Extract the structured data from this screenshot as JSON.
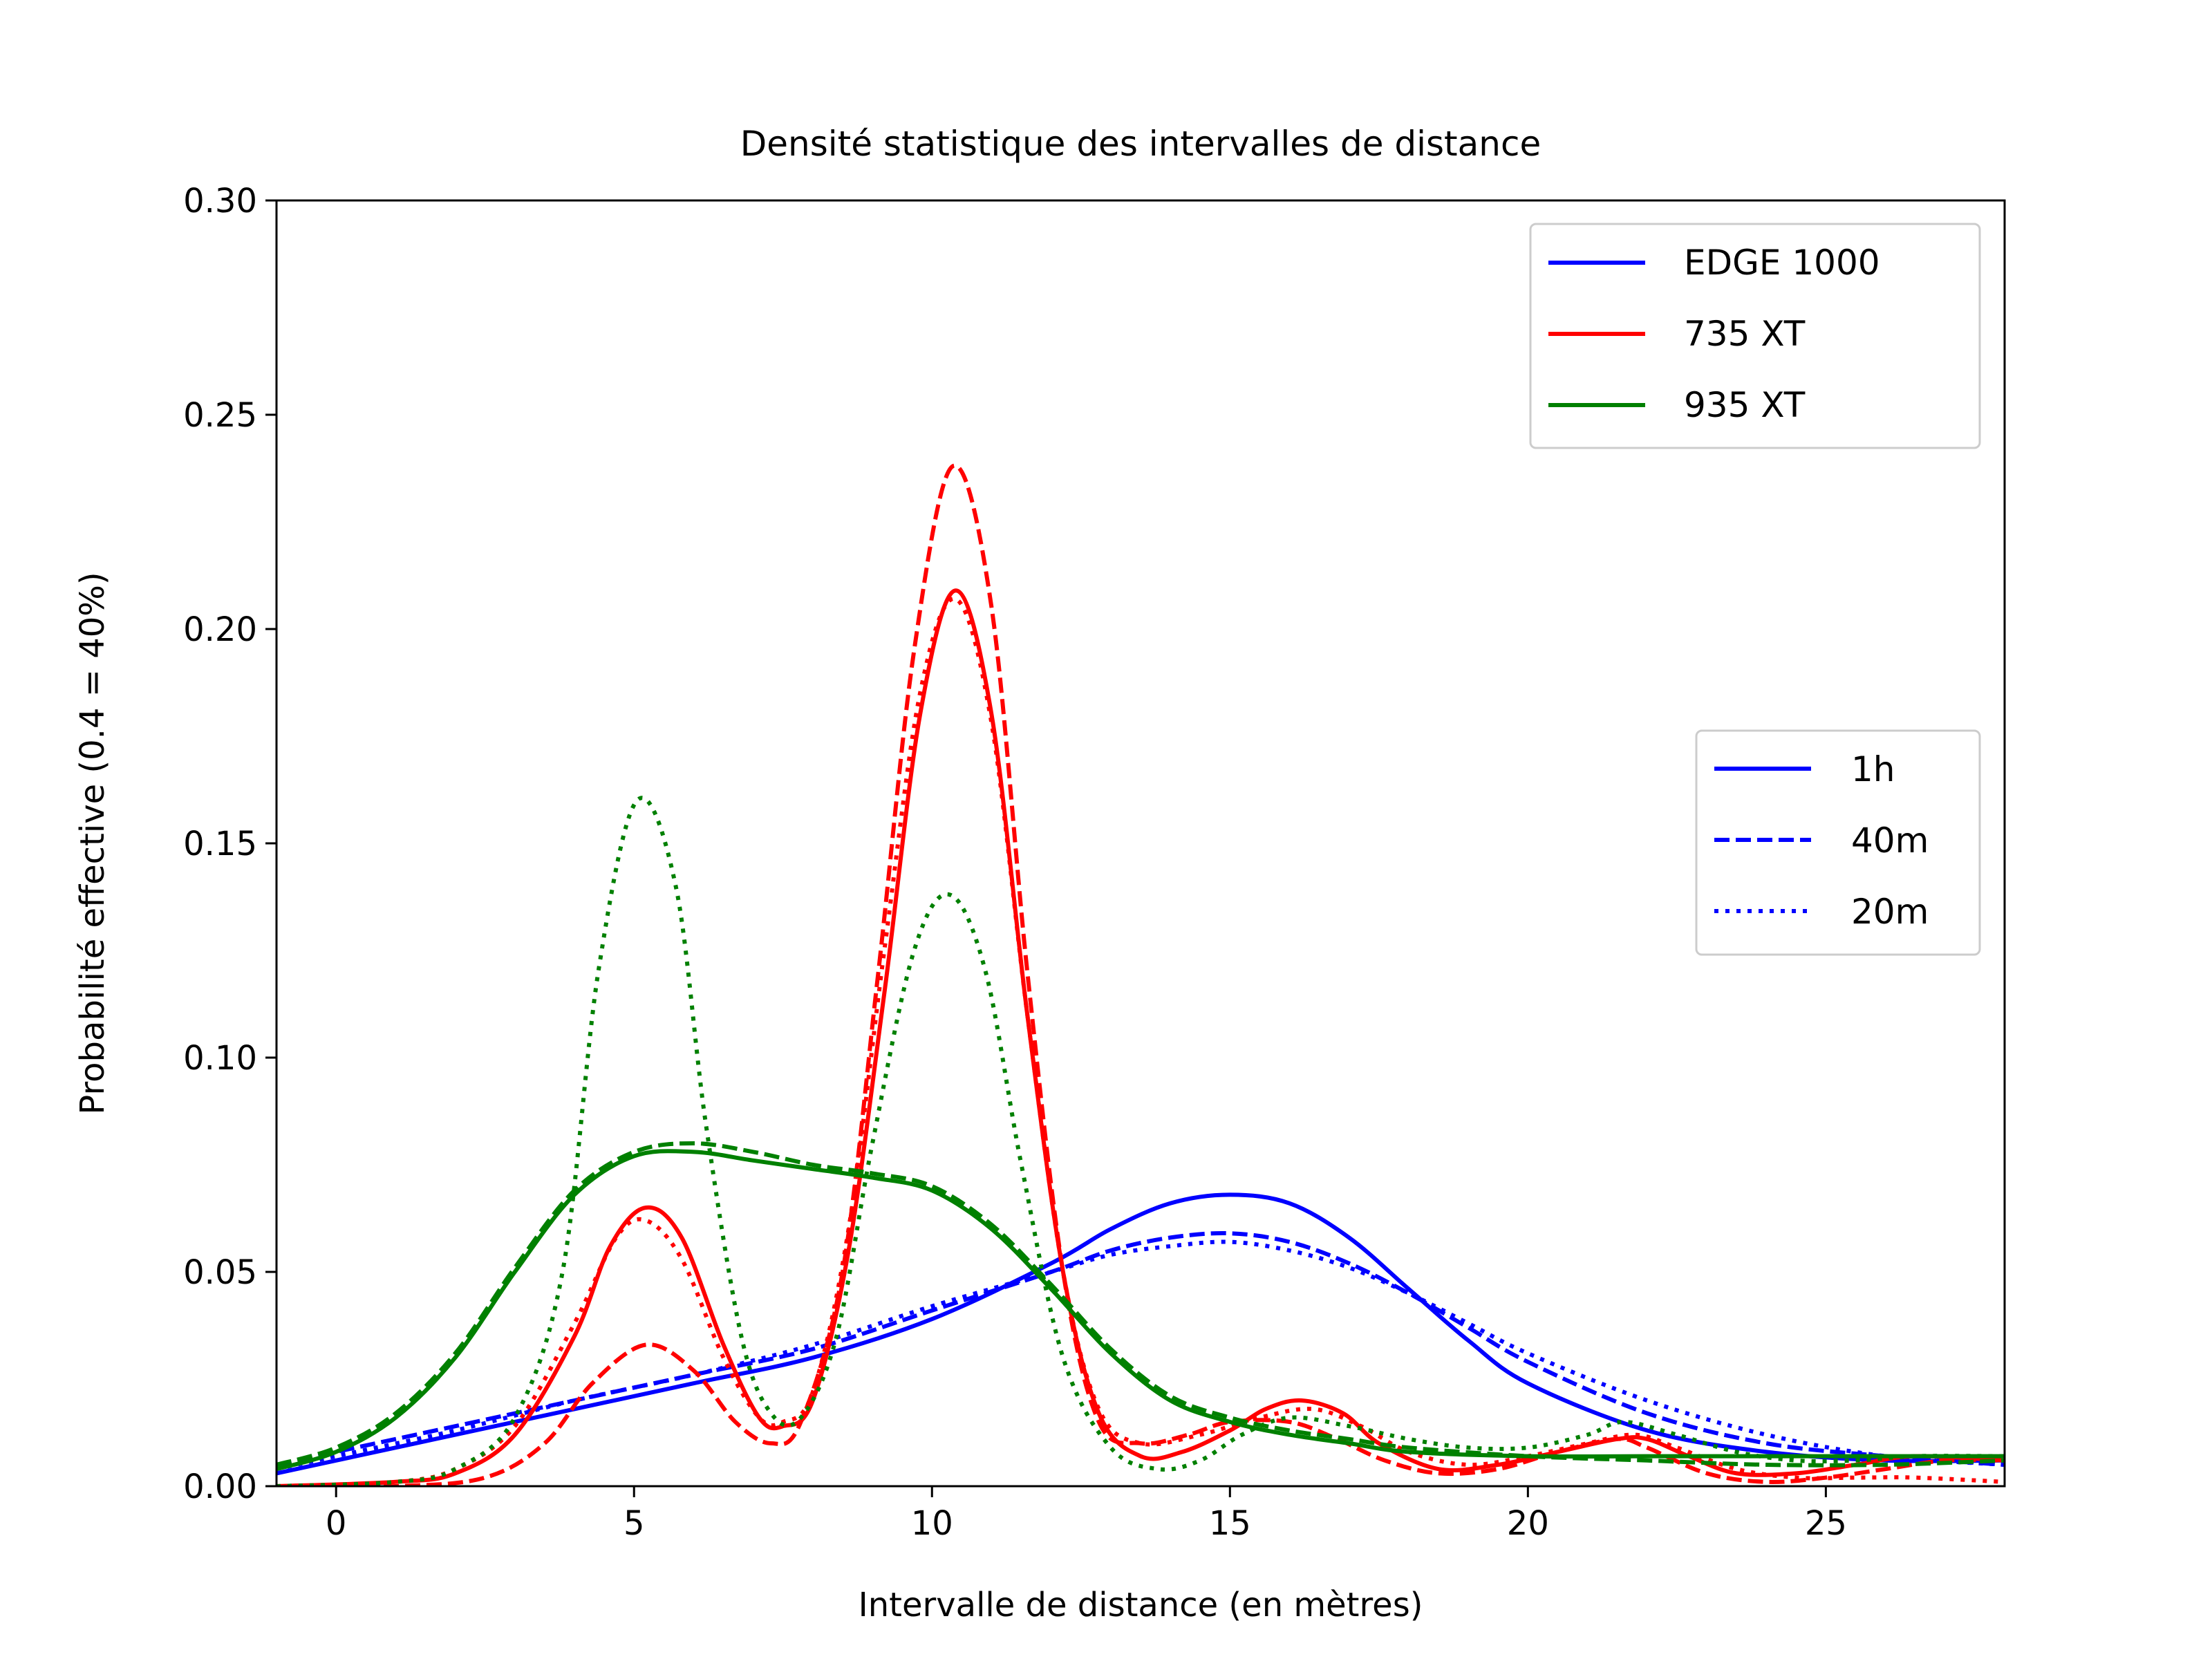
{
  "chart_data": {
    "type": "line",
    "title": "Densité statistique des intervalles de distance",
    "xlabel": "Intervalle de distance (en mètres)",
    "ylabel": "Probabilité effective (0.4 = 40%)",
    "xlim": [
      -1,
      28
    ],
    "ylim": [
      0,
      0.3
    ],
    "xticks": [
      0,
      5,
      10,
      15,
      20,
      25
    ],
    "yticks": [
      0,
      0.05,
      0.1,
      0.15,
      0.2,
      0.25,
      0.3
    ],
    "xtick_labels": [
      "0",
      "5",
      "10",
      "15",
      "20",
      "25"
    ],
    "ytick_labels": [
      "0.00",
      "0.05",
      "0.10",
      "0.15",
      "0.20",
      "0.25",
      "0.30"
    ],
    "grid": false,
    "legends": [
      {
        "placement": "top-right",
        "entries": [
          {
            "label": "EDGE 1000",
            "color": "#0000ff",
            "style": "solid"
          },
          {
            "label": "735 XT",
            "color": "#ff0000",
            "style": "solid"
          },
          {
            "label": "935 XT",
            "color": "#008000",
            "style": "solid"
          }
        ]
      },
      {
        "placement": "center-right",
        "entries": [
          {
            "label": "1h",
            "color": "#0000ff",
            "style": "solid"
          },
          {
            "label": "40m",
            "color": "#0000ff",
            "style": "dashed"
          },
          {
            "label": "20m",
            "color": "#0000ff",
            "style": "dotted"
          }
        ]
      }
    ],
    "series": [
      {
        "device": "EDGE 1000",
        "duration": "1h",
        "color": "#0000ff",
        "style": "solid",
        "points": [
          [
            -1,
            0.003
          ],
          [
            0,
            0.006
          ],
          [
            2,
            0.012
          ],
          [
            4,
            0.018
          ],
          [
            6,
            0.024
          ],
          [
            8,
            0.03
          ],
          [
            10,
            0.039
          ],
          [
            12,
            0.052
          ],
          [
            13,
            0.06
          ],
          [
            14,
            0.066
          ],
          [
            15,
            0.068
          ],
          [
            16,
            0.066
          ],
          [
            17,
            0.058
          ],
          [
            18,
            0.046
          ],
          [
            19,
            0.034
          ],
          [
            20,
            0.024
          ],
          [
            22,
            0.013
          ],
          [
            24,
            0.008
          ],
          [
            26,
            0.006
          ],
          [
            28,
            0.006
          ]
        ]
      },
      {
        "device": "EDGE 1000",
        "duration": "40m",
        "color": "#0000ff",
        "style": "dashed",
        "points": [
          [
            -1,
            0.005
          ],
          [
            0,
            0.008
          ],
          [
            2,
            0.014
          ],
          [
            4,
            0.02
          ],
          [
            6,
            0.026
          ],
          [
            8,
            0.032
          ],
          [
            10,
            0.041
          ],
          [
            12,
            0.05
          ],
          [
            13,
            0.055
          ],
          [
            14,
            0.058
          ],
          [
            15,
            0.059
          ],
          [
            16,
            0.057
          ],
          [
            17,
            0.052
          ],
          [
            18,
            0.045
          ],
          [
            19,
            0.037
          ],
          [
            20,
            0.029
          ],
          [
            22,
            0.017
          ],
          [
            24,
            0.01
          ],
          [
            26,
            0.007
          ],
          [
            28,
            0.005
          ]
        ]
      },
      {
        "device": "EDGE 1000",
        "duration": "20m",
        "color": "#0000ff",
        "style": "dotted",
        "points": [
          [
            -1,
            0.004
          ],
          [
            0,
            0.007
          ],
          [
            2,
            0.013
          ],
          [
            4,
            0.02
          ],
          [
            6,
            0.026
          ],
          [
            8,
            0.033
          ],
          [
            10,
            0.042
          ],
          [
            12,
            0.05
          ],
          [
            13,
            0.054
          ],
          [
            14,
            0.056
          ],
          [
            15,
            0.057
          ],
          [
            16,
            0.055
          ],
          [
            17,
            0.051
          ],
          [
            18,
            0.045
          ],
          [
            19,
            0.038
          ],
          [
            20,
            0.031
          ],
          [
            22,
            0.02
          ],
          [
            24,
            0.012
          ],
          [
            26,
            0.007
          ],
          [
            28,
            0.005
          ]
        ]
      },
      {
        "device": "735 XT",
        "duration": "1h",
        "color": "#ff0000",
        "style": "solid",
        "points": [
          [
            -1,
            0.0
          ],
          [
            1,
            0.001
          ],
          [
            2,
            0.003
          ],
          [
            3,
            0.012
          ],
          [
            4,
            0.035
          ],
          [
            4.6,
            0.056
          ],
          [
            5.2,
            0.065
          ],
          [
            5.8,
            0.058
          ],
          [
            6.5,
            0.033
          ],
          [
            7.1,
            0.016
          ],
          [
            7.5,
            0.014
          ],
          [
            8,
            0.02
          ],
          [
            8.6,
            0.055
          ],
          [
            9.2,
            0.115
          ],
          [
            9.8,
            0.18
          ],
          [
            10.4,
            0.209
          ],
          [
            11,
            0.18
          ],
          [
            11.6,
            0.11
          ],
          [
            12.2,
            0.05
          ],
          [
            12.8,
            0.017
          ],
          [
            13.5,
            0.007
          ],
          [
            14.2,
            0.008
          ],
          [
            15,
            0.013
          ],
          [
            15.6,
            0.018
          ],
          [
            16.2,
            0.02
          ],
          [
            16.9,
            0.017
          ],
          [
            17.5,
            0.01
          ],
          [
            18.5,
            0.004
          ],
          [
            19.5,
            0.005
          ],
          [
            20.5,
            0.008
          ],
          [
            21.5,
            0.011
          ],
          [
            22,
            0.011
          ],
          [
            22.7,
            0.007
          ],
          [
            23.5,
            0.003
          ],
          [
            24.5,
            0.003
          ],
          [
            25.5,
            0.005
          ],
          [
            26.5,
            0.007
          ],
          [
            28,
            0.006
          ]
        ]
      },
      {
        "device": "735 XT",
        "duration": "40m",
        "color": "#ff0000",
        "style": "dashed",
        "points": [
          [
            -1,
            0.0
          ],
          [
            1,
            0.0
          ],
          [
            2.5,
            0.002
          ],
          [
            3.5,
            0.01
          ],
          [
            4.3,
            0.024
          ],
          [
            5.2,
            0.033
          ],
          [
            6,
            0.027
          ],
          [
            6.7,
            0.015
          ],
          [
            7.3,
            0.01
          ],
          [
            7.8,
            0.015
          ],
          [
            8.5,
            0.05
          ],
          [
            9.1,
            0.12
          ],
          [
            9.7,
            0.195
          ],
          [
            10.35,
            0.238
          ],
          [
            11,
            0.205
          ],
          [
            11.6,
            0.12
          ],
          [
            12.2,
            0.05
          ],
          [
            12.8,
            0.015
          ],
          [
            13.5,
            0.01
          ],
          [
            14.3,
            0.012
          ],
          [
            15,
            0.015
          ],
          [
            16,
            0.015
          ],
          [
            16.8,
            0.011
          ],
          [
            17.6,
            0.006
          ],
          [
            18.5,
            0.003
          ],
          [
            19.5,
            0.004
          ],
          [
            20.5,
            0.008
          ],
          [
            21.5,
            0.011
          ],
          [
            22,
            0.009
          ],
          [
            23,
            0.003
          ],
          [
            24,
            0.001
          ],
          [
            25,
            0.002
          ],
          [
            26,
            0.004
          ],
          [
            27,
            0.006
          ],
          [
            28,
            0.006
          ]
        ]
      },
      {
        "device": "735 XT",
        "duration": "20m",
        "color": "#ff0000",
        "style": "dotted",
        "points": [
          [
            -1,
            0.0
          ],
          [
            1,
            0.001
          ],
          [
            2,
            0.004
          ],
          [
            3,
            0.014
          ],
          [
            4,
            0.038
          ],
          [
            4.7,
            0.058
          ],
          [
            5.2,
            0.062
          ],
          [
            5.8,
            0.053
          ],
          [
            6.5,
            0.03
          ],
          [
            7.1,
            0.016
          ],
          [
            7.5,
            0.015
          ],
          [
            8,
            0.022
          ],
          [
            8.6,
            0.06
          ],
          [
            9.2,
            0.125
          ],
          [
            9.8,
            0.185
          ],
          [
            10.4,
            0.207
          ],
          [
            11,
            0.178
          ],
          [
            11.6,
            0.11
          ],
          [
            12.2,
            0.05
          ],
          [
            12.8,
            0.018
          ],
          [
            13.5,
            0.01
          ],
          [
            14.5,
            0.012
          ],
          [
            15.5,
            0.016
          ],
          [
            16.4,
            0.018
          ],
          [
            17.2,
            0.014
          ],
          [
            18,
            0.008
          ],
          [
            19,
            0.005
          ],
          [
            20,
            0.007
          ],
          [
            21,
            0.01
          ],
          [
            21.8,
            0.012
          ],
          [
            22.5,
            0.009
          ],
          [
            23.5,
            0.004
          ],
          [
            24.5,
            0.002
          ],
          [
            25.5,
            0.002
          ],
          [
            26.5,
            0.002
          ],
          [
            28,
            0.001
          ]
        ]
      },
      {
        "device": "935 XT",
        "duration": "1h",
        "color": "#008000",
        "style": "solid",
        "points": [
          [
            -1,
            0.004
          ],
          [
            0,
            0.008
          ],
          [
            1,
            0.016
          ],
          [
            2,
            0.03
          ],
          [
            3,
            0.05
          ],
          [
            4,
            0.068
          ],
          [
            5,
            0.077
          ],
          [
            6,
            0.078
          ],
          [
            7,
            0.076
          ],
          [
            8,
            0.074
          ],
          [
            9,
            0.072
          ],
          [
            10,
            0.069
          ],
          [
            11,
            0.06
          ],
          [
            12,
            0.046
          ],
          [
            13,
            0.031
          ],
          [
            14,
            0.02
          ],
          [
            15,
            0.015
          ],
          [
            16,
            0.012
          ],
          [
            17,
            0.01
          ],
          [
            18,
            0.008
          ],
          [
            20,
            0.007
          ],
          [
            22,
            0.007
          ],
          [
            24,
            0.007
          ],
          [
            26,
            0.007
          ],
          [
            28,
            0.007
          ]
        ]
      },
      {
        "device": "935 XT",
        "duration": "40m",
        "color": "#008000",
        "style": "dashed",
        "points": [
          [
            -1,
            0.005
          ],
          [
            0,
            0.009
          ],
          [
            1,
            0.017
          ],
          [
            2,
            0.031
          ],
          [
            3,
            0.051
          ],
          [
            4,
            0.069
          ],
          [
            5,
            0.078
          ],
          [
            6,
            0.08
          ],
          [
            7,
            0.078
          ],
          [
            8,
            0.075
          ],
          [
            9,
            0.073
          ],
          [
            10,
            0.07
          ],
          [
            11,
            0.061
          ],
          [
            12,
            0.047
          ],
          [
            13,
            0.032
          ],
          [
            14,
            0.021
          ],
          [
            15,
            0.016
          ],
          [
            16,
            0.013
          ],
          [
            17,
            0.011
          ],
          [
            18,
            0.009
          ],
          [
            20,
            0.007
          ],
          [
            22,
            0.006
          ],
          [
            24,
            0.005
          ],
          [
            26,
            0.005
          ],
          [
            28,
            0.006
          ]
        ]
      },
      {
        "device": "935 XT",
        "duration": "20m",
        "color": "#008000",
        "style": "dotted",
        "points": [
          [
            -1,
            0.0
          ],
          [
            1,
            0.001
          ],
          [
            2,
            0.004
          ],
          [
            3,
            0.016
          ],
          [
            3.8,
            0.05
          ],
          [
            4.4,
            0.12
          ],
          [
            5.05,
            0.16
          ],
          [
            5.7,
            0.14
          ],
          [
            6.2,
            0.085
          ],
          [
            6.8,
            0.035
          ],
          [
            7.3,
            0.017
          ],
          [
            7.8,
            0.016
          ],
          [
            8.4,
            0.035
          ],
          [
            9,
            0.08
          ],
          [
            9.7,
            0.125
          ],
          [
            10.3,
            0.138
          ],
          [
            10.9,
            0.12
          ],
          [
            11.5,
            0.075
          ],
          [
            12.2,
            0.03
          ],
          [
            13,
            0.009
          ],
          [
            13.8,
            0.004
          ],
          [
            14.5,
            0.006
          ],
          [
            15.2,
            0.012
          ],
          [
            16,
            0.016
          ],
          [
            17,
            0.014
          ],
          [
            18,
            0.011
          ],
          [
            19,
            0.009
          ],
          [
            20,
            0.009
          ],
          [
            21,
            0.012
          ],
          [
            21.6,
            0.015
          ],
          [
            22.5,
            0.012
          ],
          [
            23.5,
            0.008
          ],
          [
            24.5,
            0.006
          ],
          [
            25.5,
            0.006
          ],
          [
            26.5,
            0.007
          ],
          [
            28,
            0.007
          ]
        ]
      }
    ]
  }
}
